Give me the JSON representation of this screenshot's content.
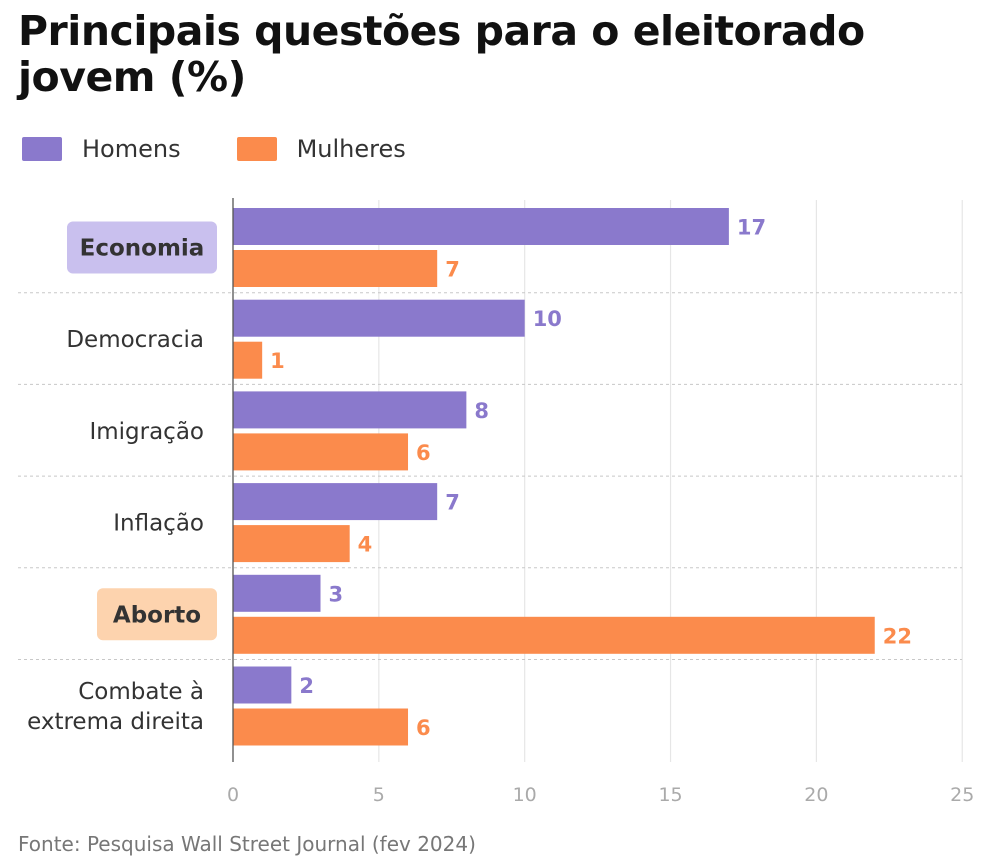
{
  "colors": {
    "homens": "#8a79cc",
    "mulheres": "#fb8b4c",
    "highlight_homens": "#c9c0ee",
    "highlight_mulheres": "#fdd3ae",
    "grid": "#e6e6e6",
    "separator": "#c8c8c8",
    "axis": "#555555"
  },
  "footer": {
    "source": "Fonte: Pesquisa Wall Street Journal (fev 2024)"
  },
  "chart_data": {
    "type": "bar",
    "orientation": "horizontal",
    "title": "Principais questões para o eleitorado jovem (%)",
    "categories": [
      [
        "Economia"
      ],
      [
        "Democracia"
      ],
      [
        "Imigração"
      ],
      [
        "Inflação"
      ],
      [
        "Aborto"
      ],
      [
        "Combate à",
        "extrema direita"
      ]
    ],
    "highlights": [
      {
        "category_index": 0,
        "series": "Homens"
      },
      {
        "category_index": 4,
        "series": "Mulheres"
      }
    ],
    "series": [
      {
        "name": "Homens",
        "values": [
          17,
          10,
          8,
          7,
          3,
          2
        ]
      },
      {
        "name": "Mulheres",
        "values": [
          7,
          1,
          6,
          4,
          22,
          6
        ]
      }
    ],
    "xlim": [
      0,
      25
    ],
    "xticks": [
      0,
      5,
      10,
      15,
      20,
      25
    ],
    "grid": true,
    "legend_position": "top-left"
  }
}
